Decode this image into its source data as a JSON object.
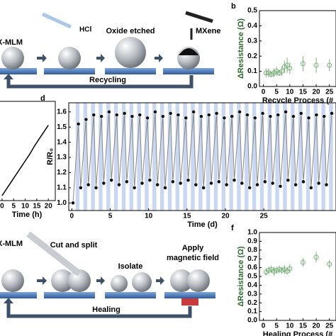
{
  "diagram": {
    "top": {
      "material": "X-MLM",
      "acid": "HCl",
      "step": "Oxide etched",
      "coat": "MXene",
      "cycle": "Recycling"
    },
    "bottom": {
      "material": "X-MLM",
      "cut": "Cut and split",
      "isolate": "Isolate",
      "apply": [
        "Apply",
        "magnetic field"
      ],
      "cycle": "Healing"
    }
  },
  "chart_data": [
    {
      "type": "scatter",
      "label": "b",
      "xlabel": "Recycle Process (#",
      "ylabel": "ΔResistance (Ω)",
      "color": "#7fb37f",
      "x": [
        1,
        2,
        3,
        4,
        5,
        6,
        7,
        8,
        9,
        10,
        15,
        20,
        25
      ],
      "values": [
        0.09,
        0.09,
        0.08,
        0.09,
        0.1,
        0.09,
        0.1,
        0.13,
        0.14,
        0.12,
        0.15,
        0.14,
        0.14
      ],
      "errors": [
        0.03,
        0.03,
        0.02,
        0.03,
        0.03,
        0.02,
        0.03,
        0.04,
        0.05,
        0.04,
        0.05,
        0.05,
        0.04
      ],
      "xlim": [
        -1.5,
        27.5
      ],
      "ylim": [
        0,
        0.5
      ],
      "xticks": [
        0,
        5,
        10,
        15,
        20,
        25
      ],
      "yticks": [
        {
          "value": 0,
          "label": "0.0"
        },
        0.1,
        0.2,
        0.3,
        0.4,
        0.5
      ]
    },
    {
      "type": "line",
      "xlabel": "Time (h)",
      "color": "#000000",
      "x": [
        0,
        2,
        4,
        6,
        8,
        10,
        12,
        14,
        16,
        18,
        20
      ],
      "values": [
        0.05,
        0.12,
        0.19,
        0.26,
        0.33,
        0.4,
        0.47,
        0.55,
        0.62,
        0.69,
        0.76
      ],
      "xlim": [
        -1.5,
        23
      ],
      "ylim": [
        0,
        1
      ],
      "xticks": [
        0,
        5,
        10,
        15,
        20
      ]
    },
    {
      "type": "line",
      "label": "d",
      "xlabel": "Time (d)",
      "ylabel": "R/R₀",
      "color": "#888888",
      "markers": true,
      "stripes": true,
      "x": [
        0.15,
        0.85,
        1.15,
        1.85,
        2.15,
        2.85,
        3.15,
        3.85,
        4.15,
        4.85,
        5.15,
        5.85,
        6.15,
        6.85,
        7.15,
        7.85,
        8.15,
        8.85,
        9.15,
        9.85,
        10.15,
        10.85,
        11.15,
        11.85,
        12.15,
        12.85,
        13.15,
        13.85,
        14.15,
        14.85,
        15.15,
        15.85,
        16.15,
        16.85,
        17.15,
        17.85,
        18.15,
        18.85,
        19.15,
        19.85,
        20.15,
        20.85,
        21.15,
        21.85,
        22.15,
        22.85,
        23.15,
        23.85,
        24.15,
        24.85,
        25.15,
        25.85,
        26.15,
        26.85,
        27.15,
        27.85,
        28.15,
        28.85,
        29.15,
        29.85,
        30.15,
        30.85,
        31.15,
        31.85,
        32.15,
        32.85,
        33.15,
        33.85
      ],
      "values": [
        1.0,
        1.52,
        1.1,
        1.55,
        1.12,
        1.58,
        1.1,
        1.57,
        1.13,
        1.6,
        1.15,
        1.58,
        1.12,
        1.59,
        1.14,
        1.57,
        1.1,
        1.58,
        1.13,
        1.56,
        1.15,
        1.6,
        1.12,
        1.57,
        1.1,
        1.59,
        1.14,
        1.58,
        1.13,
        1.56,
        1.15,
        1.6,
        1.12,
        1.57,
        1.1,
        1.58,
        1.13,
        1.59,
        1.14,
        1.56,
        1.12,
        1.57,
        1.15,
        1.6,
        1.13,
        1.58,
        1.1,
        1.56,
        1.12,
        1.59,
        1.14,
        1.57,
        1.13,
        1.58,
        1.11,
        1.6,
        1.15,
        1.57,
        1.12,
        1.59,
        1.14,
        1.56,
        1.1,
        1.58,
        1.13,
        1.57,
        1.12,
        1.59
      ],
      "xlim": [
        -0.4,
        34.4
      ],
      "ylim": [
        0.95,
        1.66
      ],
      "xticks": [
        0,
        5,
        10,
        15,
        20,
        25
      ],
      "yticks": [
        {
          "value": 1.0,
          "label": "1.0"
        },
        1.1,
        1.2,
        1.3,
        1.4,
        1.5,
        1.6
      ]
    },
    {
      "type": "scatter",
      "label": "f",
      "xlabel": "Healing Process (#",
      "ylabel": "ΔResistance (Ω)",
      "color": "#7fb37f",
      "x": [
        1,
        2,
        3,
        4,
        5,
        6,
        7,
        8,
        9,
        10,
        15,
        20,
        25
      ],
      "values": [
        0.55,
        0.57,
        0.58,
        0.56,
        0.57,
        0.58,
        0.57,
        0.58,
        0.56,
        0.59,
        0.66,
        0.72,
        0.64
      ],
      "errors": [
        0.04,
        0.04,
        0.04,
        0.05,
        0.04,
        0.04,
        0.04,
        0.05,
        0.04,
        0.05,
        0.05,
        0.06,
        0.05
      ],
      "xlim": [
        -1.5,
        27.5
      ],
      "ylim": [
        0,
        1
      ],
      "xticks": [
        0,
        5,
        10,
        15,
        20,
        25
      ],
      "yticks": [
        {
          "value": 0,
          "label": "0.0"
        },
        0.1,
        0.2,
        0.3,
        0.4,
        0.5,
        0.6,
        0.7,
        0.8,
        0.9,
        {
          "value": 1,
          "label": "1.0"
        }
      ]
    }
  ]
}
